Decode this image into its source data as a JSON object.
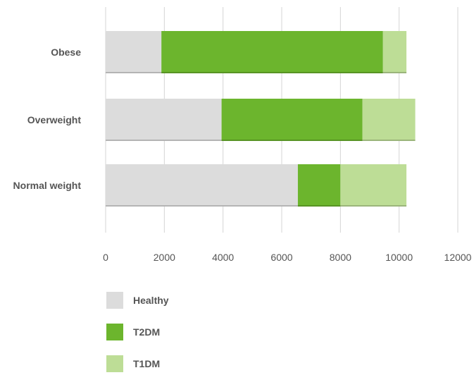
{
  "chart_data": {
    "type": "bar",
    "orientation": "horizontal",
    "stacked": true,
    "categories": [
      "Obese",
      "Overweight",
      "Normal weight"
    ],
    "series": [
      {
        "name": "Healthy",
        "values": [
          1900,
          3950,
          6550
        ],
        "color": "#dcdcdc"
      },
      {
        "name": "T2DM",
        "values": [
          7550,
          4800,
          1450
        ],
        "color": "#6cb52d"
      },
      {
        "name": "T1DM",
        "values": [
          800,
          1800,
          2250
        ],
        "color": "#bddd96"
      }
    ],
    "xticks": [
      0,
      2000,
      4000,
      6000,
      8000,
      10000,
      12000
    ],
    "xlim": [
      0,
      12000
    ],
    "grid": "vertical",
    "legend_position": "bottom-left",
    "title": "",
    "xlabel": "",
    "ylabel": ""
  }
}
